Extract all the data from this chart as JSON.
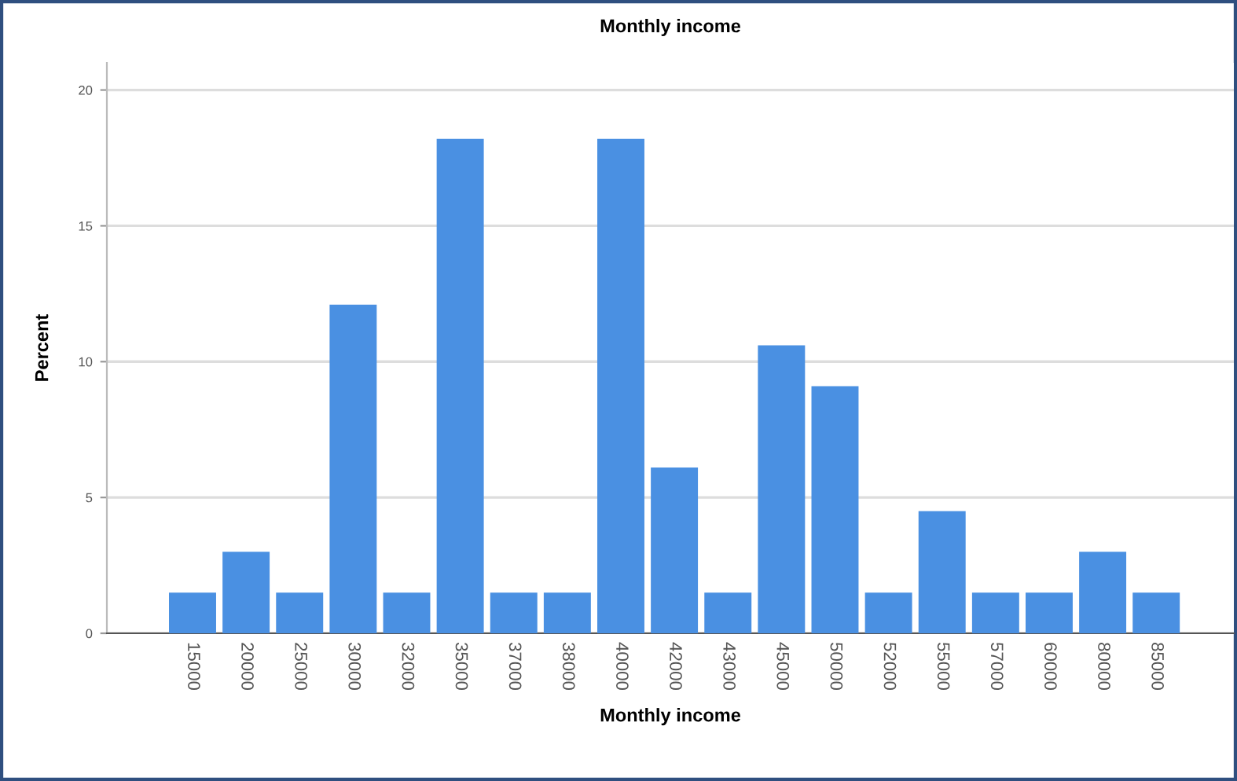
{
  "chart_data": {
    "type": "bar",
    "title": "Monthly income",
    "xlabel": "Monthly income",
    "ylabel": "Percent",
    "categories": [
      "15000",
      "20000",
      "25000",
      "30000",
      "32000",
      "35000",
      "37000",
      "38000",
      "40000",
      "42000",
      "43000",
      "45000",
      "50000",
      "52000",
      "55000",
      "57000",
      "60000",
      "80000",
      "85000"
    ],
    "values": [
      1.5,
      3.0,
      1.5,
      12.1,
      1.5,
      18.2,
      1.5,
      1.5,
      18.2,
      6.1,
      1.5,
      10.6,
      9.1,
      1.5,
      4.5,
      1.5,
      1.5,
      3.0,
      1.5
    ],
    "color": "#4a90e2",
    "ylim": [
      0,
      21
    ],
    "yticks": [
      0,
      5,
      10,
      15,
      20
    ],
    "grid": "y"
  }
}
